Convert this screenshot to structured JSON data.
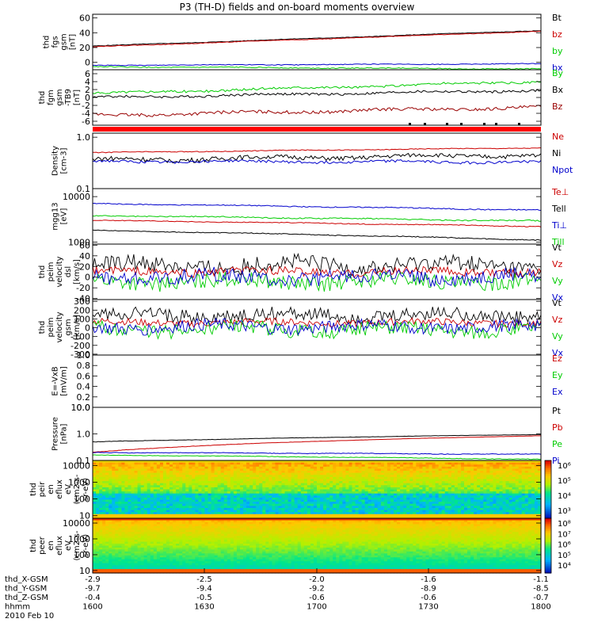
{
  "title": "P3 (TH-D) fields and on-board moments overview",
  "chart_data": [
    {
      "type": "line",
      "ylabel": [
        "thd",
        "fgs",
        "gsm",
        "[nT]"
      ],
      "ylim": [
        -10,
        65
      ],
      "yticks": [
        0,
        20,
        40,
        60
      ],
      "ytick_labels": [
        "0",
        "20",
        "40",
        "60"
      ],
      "series": [
        {
          "name": "Bt",
          "color": "#000000",
          "start": 22,
          "end": 43,
          "noise": 0.4
        },
        {
          "name": "bz",
          "color": "#cc0000",
          "start": 21,
          "end": 42,
          "noise": 0.4
        },
        {
          "name": "by",
          "color": "#00cc00",
          "start": -6,
          "end": -9,
          "noise": 0.6
        },
        {
          "name": "bx",
          "color": "#0000cc",
          "start": -4,
          "end": -2,
          "noise": 0.5
        }
      ]
    },
    {
      "type": "line",
      "ylabel": [
        "thd",
        "fgm",
        "gsm",
        "-TB9",
        "[nT]"
      ],
      "ylim": [
        -7,
        7
      ],
      "yticks": [
        -6,
        -4,
        -2,
        0,
        2,
        4,
        6
      ],
      "ytick_labels": [
        "-6",
        "-4",
        "-2",
        "0",
        "2",
        "4",
        "6"
      ],
      "series": [
        {
          "name": "By",
          "color": "#00cc00",
          "start": 1,
          "end": 4,
          "noise": 0.3
        },
        {
          "name": "Bx",
          "color": "#000000",
          "start": 0,
          "end": 1.8,
          "noise": 0.3
        },
        {
          "name": "Bz",
          "color": "#990000",
          "start": -4.5,
          "end": -2.5,
          "noise": 0.4
        }
      ]
    },
    {
      "type": "line",
      "log": true,
      "ylabel": [
        "Density",
        "[cm-3]"
      ],
      "ylim": [
        0.1,
        1.2
      ],
      "yticks": [
        0.1,
        1.0
      ],
      "ytick_labels": [
        "0.1",
        "1.0"
      ],
      "series": [
        {
          "name": "Ne",
          "color": "#cc0000",
          "start": 0.5,
          "end": 0.62,
          "noise": 0.01
        },
        {
          "name": "Ni",
          "color": "#000000",
          "start": 0.36,
          "end": 0.45,
          "noise": 0.04
        },
        {
          "name": "Npot",
          "color": "#0000cc",
          "start": 0.34,
          "end": 0.33,
          "noise": 0.02
        }
      ]
    },
    {
      "type": "line",
      "log": true,
      "ylabel": [
        "mgg13",
        "[eV]"
      ],
      "ylim": [
        900,
        15000
      ],
      "yticks": [
        1000,
        10000
      ],
      "ytick_labels": [
        "1000",
        "10000"
      ],
      "series": [
        {
          "name": "Te⊥",
          "color": "#cc0000",
          "start": 3000,
          "end": 2200,
          "noise": 50
        },
        {
          "name": "Tell",
          "color": "#000000",
          "start": 1800,
          "end": 1100,
          "noise": 30
        },
        {
          "name": "Ti⊥",
          "color": "#0000cc",
          "start": 7000,
          "end": 5000,
          "noise": 150
        },
        {
          "name": "Till",
          "color": "#00cc00",
          "start": 3800,
          "end": 2900,
          "noise": 100
        }
      ]
    },
    {
      "type": "line",
      "ylabel": [
        "thd",
        "peim",
        "velocity",
        "dsl",
        "[km/s]"
      ],
      "ylim": [
        -42,
        62
      ],
      "yticks": [
        -40,
        -20,
        0,
        20,
        40,
        60
      ],
      "ytick_labels": [
        "-40",
        "-20",
        "0",
        "20",
        "40",
        "60"
      ],
      "series": [
        {
          "name": "Vt",
          "color": "#000000",
          "start": 22,
          "end": 22,
          "noise": 10
        },
        {
          "name": "Vz",
          "color": "#cc0000",
          "start": 10,
          "end": 10,
          "noise": 5
        },
        {
          "name": "Vy",
          "color": "#00cc00",
          "start": -8,
          "end": -8,
          "noise": 9
        },
        {
          "name": "Vx",
          "color": "#0000cc",
          "start": 0,
          "end": 0,
          "noise": 9
        }
      ]
    },
    {
      "type": "line",
      "ylabel": [
        "thd",
        "peim",
        "velocity",
        "gsm",
        "[km/s]"
      ],
      "ylim": [
        -310,
        320
      ],
      "yticks": [
        -300,
        -200,
        -100,
        0,
        100,
        200,
        300
      ],
      "ytick_labels": [
        "-300",
        "-200",
        "-100",
        "0",
        "100",
        "200",
        "300"
      ],
      "series": [
        {
          "name": "Vt",
          "color": "#000000",
          "start": 140,
          "end": 140,
          "noise": 50
        },
        {
          "name": "Vz",
          "color": "#cc0000",
          "start": 60,
          "end": 60,
          "noise": 25
        },
        {
          "name": "Vy",
          "color": "#00cc00",
          "start": -20,
          "end": -20,
          "noise": 50
        },
        {
          "name": "Vx",
          "color": "#0000cc",
          "start": 10,
          "end": 10,
          "noise": 45
        }
      ]
    },
    {
      "type": "line",
      "ylabel": [
        "E=-VxB",
        "[mV/m]"
      ],
      "ylim": [
        0,
        1.0
      ],
      "yticks": [
        0,
        0.2,
        0.4,
        0.6,
        0.8,
        1.0
      ],
      "ytick_labels": [
        "0.0",
        "0.2",
        "0.4",
        "0.6",
        "0.8",
        "1.0"
      ],
      "series": [
        {
          "name": "Ez",
          "color": "#cc0000"
        },
        {
          "name": "Ey",
          "color": "#00cc00"
        },
        {
          "name": "Ex",
          "color": "#0000cc"
        }
      ]
    },
    {
      "type": "line",
      "log": true,
      "ylabel": [
        "Pressure",
        "[nPa]"
      ],
      "ylim": [
        0.1,
        10
      ],
      "yticks": [
        0.1,
        1.0,
        10.0
      ],
      "ytick_labels": [
        "0.1",
        "1.0",
        "10.0"
      ],
      "series": [
        {
          "name": "Pt",
          "color": "#000000",
          "start": 0.5,
          "end": 0.95,
          "noise": 0.01
        },
        {
          "name": "Pb",
          "color": "#cc0000",
          "start": 0.2,
          "end": 0.85,
          "noise": 0.005
        },
        {
          "name": "Pe",
          "color": "#00cc00",
          "start": 0.16,
          "end": 0.11,
          "noise": 0.003
        },
        {
          "name": "Pi",
          "color": "#0000cc",
          "start": 0.2,
          "end": 0.17,
          "noise": 0.005
        }
      ]
    },
    {
      "type": "heatmap",
      "ylabel": [
        "thd",
        "peir",
        "en",
        "eflux",
        "eV",
        "(cm2-s-",
        "sr-eV)"
      ],
      "yticks": [
        10,
        100,
        1000,
        10000
      ],
      "ytick_labels": [
        "10",
        "100",
        "1000",
        "10000"
      ],
      "colorbar_labels": [
        "10⁶",
        "10⁵",
        "10⁴",
        "10³"
      ]
    },
    {
      "type": "heatmap",
      "ylabel": [
        "thd",
        "peer",
        "en",
        "eflux",
        "eV",
        "(cm2-s-",
        "sr-eV)"
      ],
      "yticks": [
        10,
        100,
        1000,
        10000
      ],
      "ytick_labels": [
        "10",
        "100",
        "1000",
        "10000"
      ],
      "colorbar_labels": [
        "10⁸",
        "10⁷",
        "10⁶",
        "10⁵",
        "10⁴"
      ]
    }
  ],
  "x_axis": {
    "rows": [
      {
        "label": "thd_X-GSM",
        "values": [
          "-2.9",
          "-2.5",
          "-2.0",
          "-1.6",
          "-1.1"
        ]
      },
      {
        "label": "thd_Y-GSM",
        "values": [
          "-9.7",
          "-9.4",
          "-9.2",
          "-8.9",
          "-8.5"
        ]
      },
      {
        "label": "thd_Z-GSM",
        "values": [
          "-0.4",
          "-0.5",
          "-0.6",
          "-0.6",
          "-0.7"
        ]
      },
      {
        "label": "hhmm",
        "values": [
          "1600",
          "1630",
          "1700",
          "1730",
          "1800"
        ]
      }
    ],
    "date": "2010 Feb 10"
  }
}
